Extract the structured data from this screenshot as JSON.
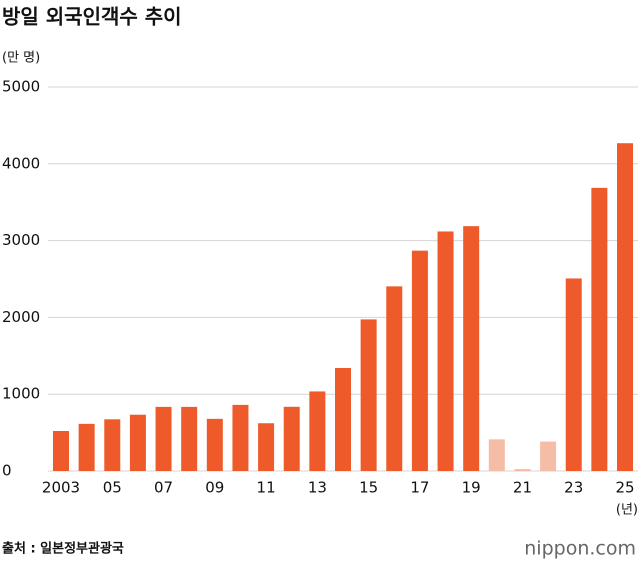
{
  "chart_data": {
    "type": "bar",
    "title": "방일 외국인객수 추이",
    "y_label": "(만 명)",
    "x_label": "(년)",
    "source": "출처 : 일본정부관광국",
    "logo": "nippon.com",
    "categories": [
      "2003",
      null,
      "05",
      null,
      "07",
      null,
      "09",
      null,
      "11",
      null,
      "13",
      null,
      "15",
      null,
      "17",
      null,
      "19",
      null,
      "21",
      null,
      "23",
      null,
      "25"
    ],
    "values": [
      521,
      614,
      673,
      733,
      835,
      835,
      679,
      861,
      622,
      836,
      1036,
      1341,
      1974,
      2404,
      2869,
      3119,
      3188,
      412,
      25,
      383,
      2507,
      3687,
      4268
    ],
    "colors": [
      "#ee5a2a",
      "#ee5a2a",
      "#ee5a2a",
      "#ee5a2a",
      "#ee5a2a",
      "#ee5a2a",
      "#ee5a2a",
      "#ee5a2a",
      "#ee5a2a",
      "#ee5a2a",
      "#ee5a2a",
      "#ee5a2a",
      "#ee5a2a",
      "#ee5a2a",
      "#ee5a2a",
      "#ee5a2a",
      "#ee5a2a",
      "#f5bda6",
      "#f5bda6",
      "#f5bda6",
      "#ee5a2a",
      "#ee5a2a",
      "#ee5a2a"
    ],
    "ylim": [
      0,
      5000
    ],
    "yticks": [
      0,
      1000,
      2000,
      3000,
      4000,
      5000
    ],
    "grid": true
  }
}
